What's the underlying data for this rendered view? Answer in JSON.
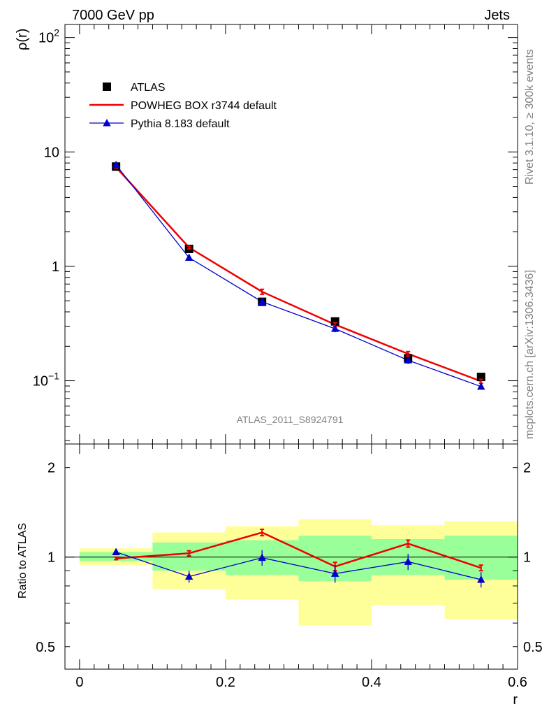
{
  "header": {
    "left": "7000 GeV pp",
    "right": "Jets"
  },
  "side_text": {
    "top": "Rivet 3.1.10, ≥ 300k events",
    "bottom": "mcplots.cern.ch [arXiv:1306.3436]"
  },
  "analysis_id": "ATLAS_2011_S8924791",
  "colors": {
    "atlas": "#000000",
    "powheg": "#ee0000",
    "pythia": "#0000cc",
    "band_inner": "#99ff99",
    "band_outer": "#ffff99"
  },
  "chart_data": [
    {
      "type": "line",
      "scale": "log",
      "ylabel": "ρ(r)",
      "xlim": [
        -0.02,
        0.6
      ],
      "ylim": [
        0.028,
        130
      ],
      "yticks": [
        {
          "value": 0.1,
          "base": "10",
          "exp": "−1"
        },
        {
          "value": 1,
          "label": "1"
        },
        {
          "value": 10,
          "label": "10"
        },
        {
          "value": 100,
          "base": "10",
          "exp": "2"
        }
      ],
      "legend": [
        {
          "key": "atlas",
          "label": "ATLAS"
        },
        {
          "key": "powheg",
          "label": "POWHEG BOX r3744 default"
        },
        {
          "key": "pythia",
          "label": "Pythia 8.183 default"
        }
      ],
      "x": [
        0.05,
        0.15,
        0.25,
        0.35,
        0.45,
        0.55
      ],
      "series": [
        {
          "key": "atlas",
          "name": "ATLAS",
          "values": [
            7.45,
            1.42,
            0.49,
            0.33,
            0.157,
            0.108
          ],
          "err": [
            0.35,
            0.06,
            0.02,
            0.015,
            0.008,
            0.005
          ]
        },
        {
          "key": "powheg",
          "name": "POWHEG BOX r3744 default",
          "values": [
            7.35,
            1.46,
            0.6,
            0.31,
            0.172,
            0.099
          ],
          "err": [
            0.15,
            0.04,
            0.03,
            0.012,
            0.008,
            0.004
          ]
        },
        {
          "key": "pythia",
          "name": "Pythia 8.183 default",
          "values": [
            7.7,
            1.19,
            0.49,
            0.285,
            0.151,
            0.089
          ],
          "err": [
            0.2,
            0.06,
            0.03,
            0.02,
            0.011,
            0.005
          ]
        }
      ]
    },
    {
      "type": "line",
      "scale": "log",
      "ylabel": "Ratio to ATLAS",
      "xlabel": "r",
      "xlim": [
        -0.02,
        0.6
      ],
      "ylim": [
        0.42,
        2.4
      ],
      "yticks": [
        {
          "value": 0.5,
          "label": "0.5"
        },
        {
          "value": 1,
          "label": "1"
        },
        {
          "value": 2,
          "label": "2"
        }
      ],
      "xticks": [
        {
          "value": 0,
          "label": "0"
        },
        {
          "value": 0.2,
          "label": "0.2"
        },
        {
          "value": 0.4,
          "label": "0.4"
        },
        {
          "value": 0.6,
          "label": "0.6"
        }
      ],
      "reference": 1,
      "bands": [
        {
          "x0": 0.0,
          "x1": 0.1,
          "inner": [
            0.97,
            1.04
          ],
          "outer": [
            0.94,
            1.07
          ]
        },
        {
          "x0": 0.1,
          "x1": 0.2,
          "inner": [
            0.9,
            1.12
          ],
          "outer": [
            0.78,
            1.21
          ]
        },
        {
          "x0": 0.2,
          "x1": 0.3,
          "inner": [
            0.87,
            1.14
          ],
          "outer": [
            0.72,
            1.27
          ]
        },
        {
          "x0": 0.3,
          "x1": 0.4,
          "inner": [
            0.83,
            1.18
          ],
          "outer": [
            0.59,
            1.34
          ]
        },
        {
          "x0": 0.4,
          "x1": 0.5,
          "inner": [
            0.87,
            1.15
          ],
          "outer": [
            0.69,
            1.28
          ]
        },
        {
          "x0": 0.5,
          "x1": 0.6,
          "inner": [
            0.84,
            1.18
          ],
          "outer": [
            0.62,
            1.32
          ]
        }
      ],
      "x": [
        0.05,
        0.15,
        0.25,
        0.35,
        0.45,
        0.55
      ],
      "series": [
        {
          "key": "powheg",
          "name": "POWHEG BOX r3744 default",
          "values": [
            0.99,
            1.03,
            1.21,
            0.93,
            1.11,
            0.92
          ],
          "err": [
            0.01,
            0.02,
            0.03,
            0.03,
            0.03,
            0.02
          ]
        },
        {
          "key": "pythia",
          "name": "Pythia 8.183 default",
          "values": [
            1.04,
            0.86,
            0.995,
            0.88,
            0.965,
            0.84
          ],
          "err": [
            0.02,
            0.04,
            0.06,
            0.06,
            0.06,
            0.05
          ]
        }
      ]
    }
  ]
}
